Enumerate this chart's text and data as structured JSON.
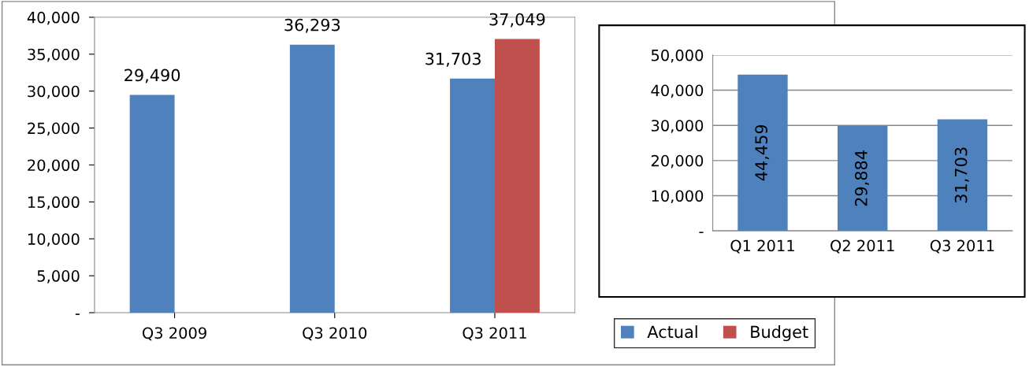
{
  "chart_data": [
    {
      "type": "bar",
      "categories": [
        "Q3 2009",
        "Q3 2010",
        "Q3 2011"
      ],
      "series": [
        {
          "name": "Actual",
          "color": "#4f81bd",
          "values": [
            29490,
            36293,
            31703
          ]
        },
        {
          "name": "Budget",
          "color": "#c0504d",
          "values": [
            null,
            null,
            37049
          ]
        }
      ],
      "ylim": [
        0,
        40000
      ],
      "yticks": [
        {
          "value": 0,
          "label": "-"
        },
        {
          "value": 5000,
          "label": "5,000"
        },
        {
          "value": 10000,
          "label": "10,000"
        },
        {
          "value": 15000,
          "label": "15,000"
        },
        {
          "value": 20000,
          "label": "20,000"
        },
        {
          "value": 25000,
          "label": "25,000"
        },
        {
          "value": 30000,
          "label": "30,000"
        },
        {
          "value": 35000,
          "label": "35,000"
        },
        {
          "value": 40000,
          "label": "40,000"
        }
      ],
      "value_labels": [
        [
          "29,490",
          "36,293",
          "31,703"
        ],
        [
          null,
          null,
          "37,049"
        ]
      ],
      "grid": false,
      "legend": "bottom right"
    },
    {
      "type": "bar",
      "categories": [
        "Q1 2011",
        "Q2 2011",
        "Q3 2011"
      ],
      "series": [
        {
          "color": "#4f81bd",
          "values": [
            44459,
            29884,
            31703
          ]
        }
      ],
      "ylim": [
        0,
        50000
      ],
      "yticks": [
        {
          "value": 0,
          "label": "-"
        },
        {
          "value": 10000,
          "label": "10,000"
        },
        {
          "value": 20000,
          "label": "20,000"
        },
        {
          "value": 30000,
          "label": "30,000"
        },
        {
          "value": 40000,
          "label": "40,000"
        },
        {
          "value": 50000,
          "label": "50,000"
        }
      ],
      "value_labels": [
        [
          "44,459",
          "29,884",
          "31,703"
        ]
      ],
      "grid": "y",
      "legend": false
    }
  ]
}
